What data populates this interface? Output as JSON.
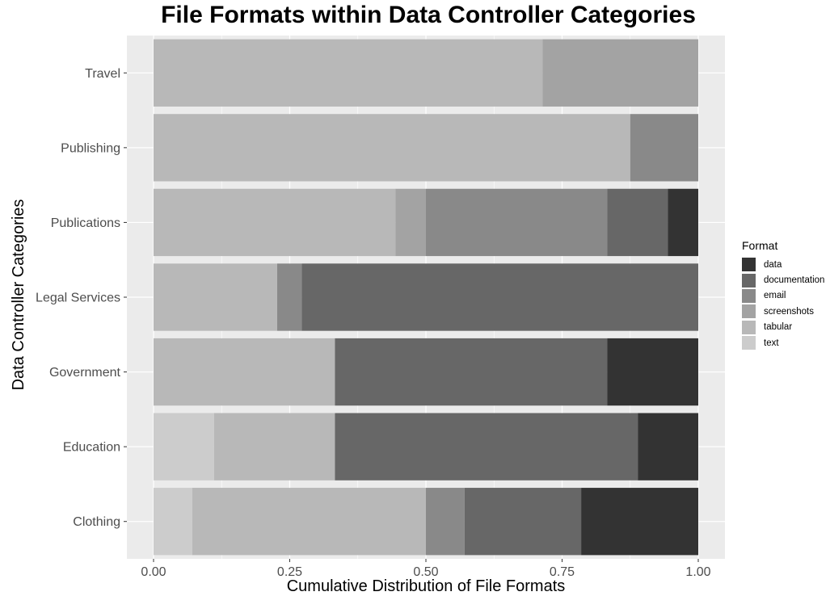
{
  "chart_data": {
    "type": "bar",
    "orientation": "horizontal",
    "stacked": true,
    "title": "File Formats within Data Controller Categories",
    "xlabel": "Cumulative Distribution of File Formats",
    "ylabel": "Data Controller Categories",
    "xlim": [
      0,
      1
    ],
    "x_ticks": [
      "0.00",
      "0.25",
      "0.50",
      "0.75",
      "1.00"
    ],
    "x_tick_values": [
      0,
      0.25,
      0.5,
      0.75,
      1.0
    ],
    "categories": [
      "Travel",
      "Publishing",
      "Publications",
      "Legal Services",
      "Government",
      "Education",
      "Clothing"
    ],
    "stack_order": [
      "text",
      "tabular",
      "screenshots",
      "email",
      "documentation",
      "data"
    ],
    "series": [
      {
        "name": "text",
        "values": [
          0,
          0,
          0,
          0,
          0,
          0.111,
          0.071
        ]
      },
      {
        "name": "tabular",
        "values": [
          0.714,
          0.875,
          0.444,
          0.227,
          0.333,
          0.222,
          0.429
        ]
      },
      {
        "name": "screenshots",
        "values": [
          0.286,
          0,
          0.056,
          0,
          0,
          0,
          0
        ]
      },
      {
        "name": "email",
        "values": [
          0,
          0.125,
          0.333,
          0.045,
          0,
          0,
          0.071
        ]
      },
      {
        "name": "documentation",
        "values": [
          0,
          0,
          0.111,
          0.728,
          0.5,
          0.556,
          0.214
        ]
      },
      {
        "name": "data",
        "values": [
          0,
          0,
          0.056,
          0,
          0.167,
          0.111,
          0.215
        ]
      }
    ],
    "colors": {
      "data": "#333333",
      "documentation": "#676767",
      "email": "#898989",
      "screenshots": "#a3a3a3",
      "tabular": "#b8b8b8",
      "text": "#cccccc"
    },
    "grid": true,
    "panel_background": "#ebebeb",
    "legend": {
      "title": "Format",
      "position": "right",
      "items": [
        "data",
        "documentation",
        "email",
        "screenshots",
        "tabular",
        "text"
      ]
    }
  }
}
